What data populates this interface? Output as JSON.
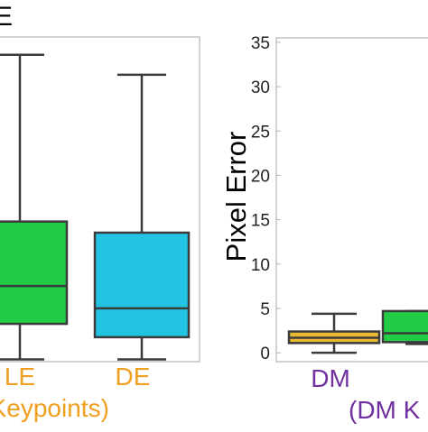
{
  "panel_letter": "E",
  "colors": {
    "axis": "#b5b5b5",
    "whisker": "#3b3b3b",
    "purple": "#7030a0",
    "orange": "#f0a020",
    "le_box": "#22cc44",
    "de_box": "#22c4e4",
    "dm_box": "#e8b830",
    "dm2_box": "#22cc44"
  },
  "chart_data": [
    {
      "type": "box",
      "categories": [
        "LE",
        "DE"
      ],
      "group_label": "(FAST Keypoints)",
      "boxes": [
        {
          "label": "LE",
          "min": 0,
          "q1": 1.6,
          "median": 3.3,
          "q3": 6.2,
          "max": 13.7
        },
        {
          "label": "DE",
          "min": 0,
          "q1": 1.0,
          "median": 2.3,
          "q3": 5.7,
          "max": 12.8
        }
      ],
      "ylim": [
        -0.1,
        14.5
      ]
    },
    {
      "type": "box",
      "categories": [
        "DM"
      ],
      "group_label": "(DM K",
      "ylabel": "Pixel Error",
      "yticks": [
        0,
        5,
        10,
        15,
        20,
        25,
        30,
        35
      ],
      "ylim": [
        -1,
        35.5
      ],
      "boxes": [
        {
          "label": "DM",
          "min": 0,
          "q1": 1.1,
          "median": 1.7,
          "q3": 2.4,
          "max": 4.4
        },
        {
          "label": "",
          "min": 1.0,
          "q1": 1.2,
          "median": 2.2,
          "q3": 4.7,
          "max": 4.7
        }
      ]
    }
  ]
}
